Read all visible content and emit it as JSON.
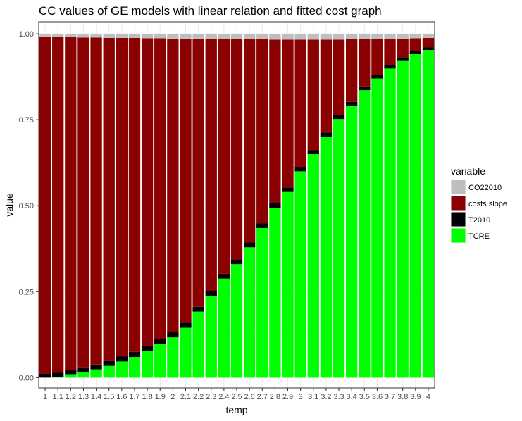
{
  "chart_data": {
    "type": "bar",
    "stacked": true,
    "title": "CC values of GE models with linear relation and fitted cost graph",
    "xlabel": "temp",
    "ylabel": "value",
    "ylim": [
      -0.03,
      1.035
    ],
    "yticks": [
      0.0,
      0.25,
      0.5,
      0.75,
      1.0
    ],
    "ytick_labels": [
      "0.00",
      "0.25",
      "0.50",
      "0.75",
      "1.00"
    ],
    "categories": [
      "1",
      "1.1",
      "1.2",
      "1.3",
      "1.4",
      "1.5",
      "1.6",
      "1.7",
      "1.8",
      "1.9",
      "2",
      "2.1",
      "2.2",
      "2.3",
      "2.4",
      "2.5",
      "2.6",
      "2.7",
      "2.8",
      "2.9",
      "3",
      "3.1",
      "3.2",
      "3.3",
      "3.4",
      "3.5",
      "3.6",
      "3.7",
      "3.8",
      "3.9",
      "4"
    ],
    "grid": true,
    "legend_position": "right",
    "legend_title": "variable",
    "stack_order": [
      "TCRE",
      "T2010",
      "costs.slope",
      "CO22010"
    ],
    "series": [
      {
        "name": "CO22010",
        "color": "#bebebe",
        "values": [
          0.009,
          0.01,
          0.01,
          0.011,
          0.011,
          0.012,
          0.012,
          0.012,
          0.013,
          0.013,
          0.014,
          0.014,
          0.014,
          0.015,
          0.015,
          0.016,
          0.016,
          0.016,
          0.017,
          0.017,
          0.017,
          0.017,
          0.017,
          0.017,
          0.016,
          0.016,
          0.015,
          0.015,
          0.014,
          0.013,
          0.012
        ]
      },
      {
        "name": "costs.slope",
        "color": "#8b0000",
        "values": [
          0.98,
          0.976,
          0.968,
          0.961,
          0.951,
          0.94,
          0.926,
          0.913,
          0.895,
          0.874,
          0.854,
          0.826,
          0.78,
          0.733,
          0.683,
          0.64,
          0.591,
          0.535,
          0.476,
          0.43,
          0.37,
          0.321,
          0.27,
          0.219,
          0.182,
          0.137,
          0.105,
          0.076,
          0.054,
          0.037,
          0.027
        ]
      },
      {
        "name": "T2010",
        "color": "#000000",
        "values": [
          0.011,
          0.012,
          0.012,
          0.013,
          0.014,
          0.014,
          0.015,
          0.015,
          0.015,
          0.015,
          0.015,
          0.015,
          0.014,
          0.014,
          0.014,
          0.014,
          0.014,
          0.014,
          0.013,
          0.013,
          0.013,
          0.012,
          0.012,
          0.012,
          0.011,
          0.011,
          0.01,
          0.01,
          0.009,
          0.009,
          0.008
        ]
      },
      {
        "name": "TCRE",
        "color": "#00ff00",
        "values": [
          0.0,
          0.002,
          0.01,
          0.015,
          0.024,
          0.034,
          0.047,
          0.06,
          0.077,
          0.098,
          0.117,
          0.145,
          0.192,
          0.238,
          0.288,
          0.33,
          0.379,
          0.435,
          0.494,
          0.54,
          0.6,
          0.65,
          0.701,
          0.752,
          0.791,
          0.836,
          0.87,
          0.899,
          0.923,
          0.941,
          0.953
        ]
      }
    ]
  }
}
